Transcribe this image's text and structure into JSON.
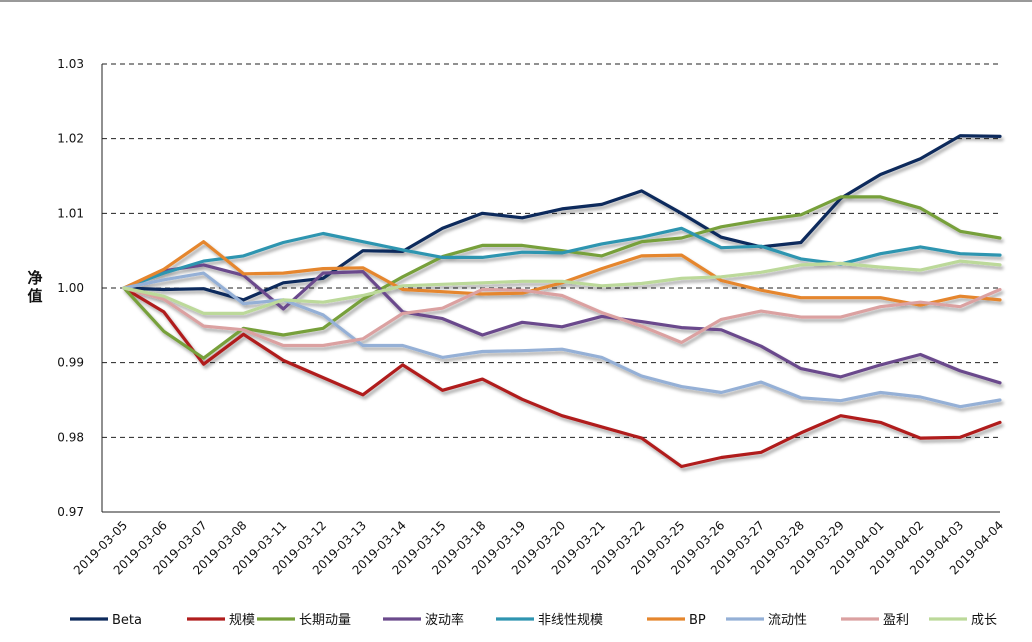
{
  "chart_data": {
    "type": "line",
    "title": "",
    "xlabel": "",
    "ylabel": "净值",
    "ylim": [
      0.97,
      1.03
    ],
    "yticks": [
      "0.97",
      "0.98",
      "0.99",
      "1.00",
      "1.01",
      "1.02",
      "1.03"
    ],
    "grid": "horizontal dashed",
    "legend_position": "bottom",
    "categories": [
      "2019-03-05",
      "2019-03-06",
      "2019-03-07",
      "2019-03-08",
      "2019-03-11",
      "2019-03-12",
      "2019-03-13",
      "2019-03-14",
      "2019-03-15",
      "2019-03-18",
      "2019-03-19",
      "2019-03-20",
      "2019-03-21",
      "2019-03-22",
      "2019-03-25",
      "2019-03-26",
      "2019-03-27",
      "2019-03-28",
      "2019-03-29",
      "2019-04-01",
      "2019-04-02",
      "2019-04-03",
      "2019-04-04"
    ],
    "series": [
      {
        "name": "Beta",
        "color": "#0d2a5c",
        "values": [
          1.0,
          0.9998,
          0.9999,
          0.9984,
          1.0007,
          1.0013,
          1.005,
          1.0049,
          1.008,
          1.01,
          1.0094,
          1.0106,
          1.0112,
          1.013,
          1.01,
          1.0068,
          1.0055,
          1.0061,
          1.012,
          1.0152,
          1.0173,
          1.0204,
          1.0203
        ]
      },
      {
        "name": "规模",
        "color": "#b01d1d",
        "values": [
          1.0,
          0.9968,
          0.9898,
          0.9938,
          0.9903,
          0.988,
          0.9857,
          0.9897,
          0.9863,
          0.9878,
          0.9851,
          0.9829,
          0.9814,
          0.9799,
          0.9761,
          0.9773,
          0.978,
          0.9806,
          0.9829,
          0.982,
          0.9799,
          0.98,
          0.982
        ]
      },
      {
        "name": "长期动量",
        "color": "#77a03a",
        "values": [
          1.0,
          0.9942,
          0.9906,
          0.9946,
          0.9937,
          0.9946,
          0.9985,
          1.0015,
          1.0042,
          1.0057,
          1.0057,
          1.005,
          1.0043,
          1.0062,
          1.0067,
          1.0082,
          1.0091,
          1.0098,
          1.0122,
          1.0122,
          1.0107,
          1.0076,
          1.0067
        ]
      },
      {
        "name": "波动率",
        "color": "#6b4a8c",
        "values": [
          1.0,
          1.0023,
          1.0031,
          1.0017,
          0.9972,
          1.002,
          1.0022,
          0.9968,
          0.9959,
          0.9937,
          0.9954,
          0.9948,
          0.9962,
          0.9955,
          0.9947,
          0.9944,
          0.9922,
          0.9892,
          0.9881,
          0.9897,
          0.9911,
          0.9889,
          0.9873
        ]
      },
      {
        "name": "非线性规模",
        "color": "#2e95b0",
        "values": [
          1.0,
          1.002,
          1.0036,
          1.0043,
          1.0061,
          1.0073,
          1.0062,
          1.0051,
          1.0041,
          1.0041,
          1.0048,
          1.0047,
          1.0059,
          1.0068,
          1.008,
          1.0054,
          1.0056,
          1.0039,
          1.0032,
          1.0046,
          1.0055,
          1.0046,
          1.0044
        ]
      },
      {
        "name": "BP",
        "color": "#e5862d",
        "values": [
          1.0,
          1.0025,
          1.0062,
          1.0019,
          1.002,
          1.0026,
          1.0027,
          0.9998,
          0.9995,
          0.9992,
          0.9993,
          1.0007,
          1.0026,
          1.0043,
          1.0044,
          1.001,
          0.9997,
          0.9987,
          0.9987,
          0.9987,
          0.9977,
          0.9989,
          0.9984
        ]
      },
      {
        "name": "流动性",
        "color": "#95b0d6",
        "values": [
          1.0,
          1.0011,
          1.002,
          0.9979,
          0.9984,
          0.9964,
          0.9923,
          0.9923,
          0.9907,
          0.9915,
          0.9916,
          0.9918,
          0.9907,
          0.9882,
          0.9868,
          0.986,
          0.9874,
          0.9853,
          0.9849,
          0.986,
          0.9854,
          0.9841,
          0.985
        ]
      },
      {
        "name": "盈利",
        "color": "#dba1a1",
        "values": [
          1.0,
          0.9985,
          0.9949,
          0.9944,
          0.9923,
          0.9923,
          0.9932,
          0.9966,
          0.9973,
          0.9998,
          0.9997,
          0.999,
          0.9967,
          0.9949,
          0.9927,
          0.9958,
          0.9969,
          0.9961,
          0.9961,
          0.9975,
          0.9981,
          0.9975,
          0.9998
        ]
      },
      {
        "name": "成长",
        "color": "#bcd99a",
        "values": [
          1.0,
          0.9989,
          0.9966,
          0.9966,
          0.9984,
          0.9981,
          0.999,
          1.0003,
          1.0005,
          1.0007,
          1.0009,
          1.0009,
          1.0003,
          1.0006,
          1.0013,
          1.0015,
          1.0021,
          1.0031,
          1.0033,
          1.0028,
          1.0024,
          1.0036,
          1.0031
        ]
      }
    ]
  }
}
